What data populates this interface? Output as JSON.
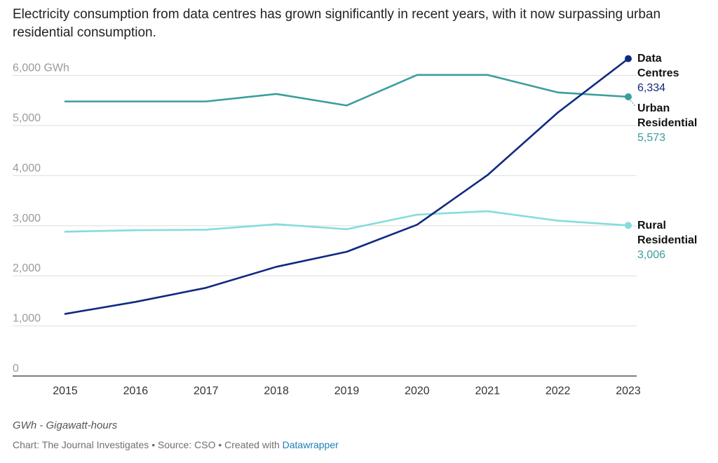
{
  "title": "Electricity consumption from data centres has grown significantly in recent years, with it now surpassing urban residential consumption.",
  "notes": "GWh - Gigawatt-hours",
  "footer": {
    "chart_by": "Chart: The Journal Investigates",
    "separator": "•",
    "source": "Source: CSO",
    "created_with": "Created with",
    "tool": "Datawrapper"
  },
  "chart_data": {
    "type": "line",
    "x": [
      2015,
      2016,
      2017,
      2018,
      2019,
      2020,
      2021,
      2022,
      2023
    ],
    "ylim": [
      0,
      6000
    ],
    "yticks": [
      0,
      1000,
      2000,
      3000,
      4000,
      5000,
      6000
    ],
    "ytick_labels": [
      "0",
      "1,000",
      "2,000",
      "3,000",
      "4,000",
      "5,000",
      "6,000 GWh"
    ],
    "grid": true,
    "series": [
      {
        "name": "Urban Residential",
        "label_lines": [
          "Urban",
          "Residential"
        ],
        "value_label": "5,573",
        "color": "#3a9e9b",
        "label_color": "#3a9e9b",
        "values": [
          5480,
          5480,
          5480,
          5630,
          5400,
          6010,
          6010,
          5660,
          5573
        ]
      },
      {
        "name": "Rural Residential",
        "label_lines": [
          "Rural",
          "Residential"
        ],
        "value_label": "3,006",
        "color": "#85dcdc",
        "label_color": "#3a9e9b",
        "values": [
          2880,
          2910,
          2920,
          3030,
          2930,
          3220,
          3290,
          3100,
          3006
        ]
      },
      {
        "name": "Data Centres",
        "label_lines": [
          "Data",
          "Centres"
        ],
        "value_label": "6,334",
        "color": "#0f2a82",
        "label_color": "#0f2a82",
        "values": [
          1240,
          1480,
          1760,
          2180,
          2480,
          3020,
          4010,
          5260,
          6334
        ]
      }
    ]
  }
}
